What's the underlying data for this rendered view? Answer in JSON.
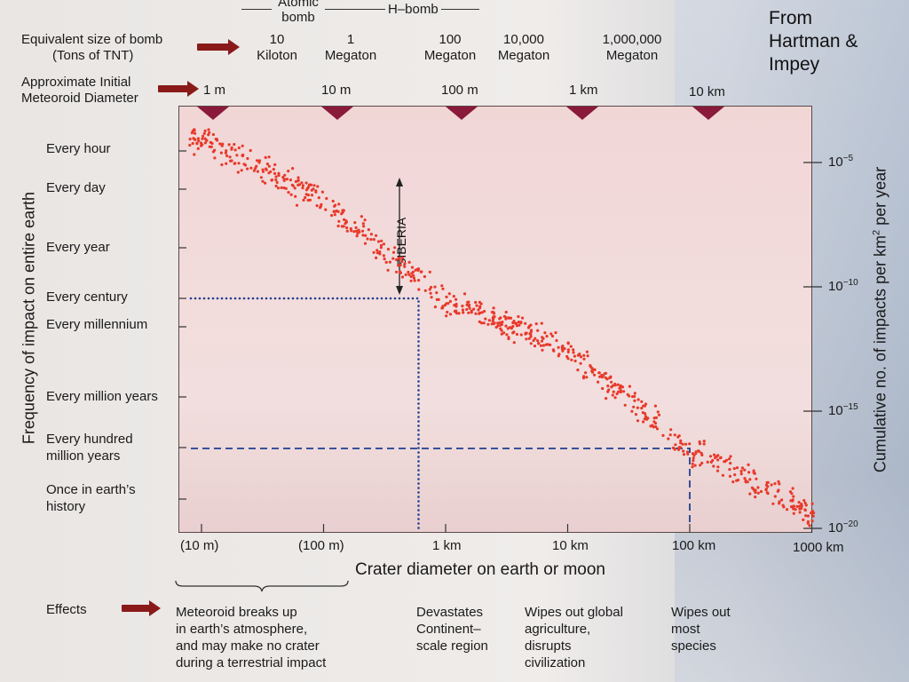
{
  "attribution": [
    "From",
    "Hartman &",
    "Impey"
  ],
  "bomb_header": {
    "atomic_label_1": "Atomic",
    "atomic_label_2": "bomb",
    "hbomb_label": "H–bomb",
    "row_label_1": "Equivalent size of bomb",
    "row_label_2": "(Tons of TNT)",
    "values": [
      {
        "line1": "10",
        "line2": "Kiloton"
      },
      {
        "line1": "1",
        "line2": "Megaton"
      },
      {
        "line1": "100",
        "line2": "Megaton"
      },
      {
        "line1": "10,000",
        "line2": "Megaton"
      },
      {
        "line1": "1,000,000",
        "line2": "Megaton"
      }
    ]
  },
  "meteoroid_header": {
    "row_label_1": "Approximate Initial",
    "row_label_2": "Meteoroid Diameter",
    "values": [
      "1 m",
      "10 m",
      "100 m",
      "1 km",
      "10 km"
    ]
  },
  "left_axis": {
    "label": "Frequency of impact on entire earth",
    "ticks": [
      {
        "lines": [
          "Every hour"
        ]
      },
      {
        "lines": [
          "Every day"
        ]
      },
      {
        "lines": [
          "Every year"
        ]
      },
      {
        "lines": [
          "Every century"
        ]
      },
      {
        "lines": [
          "Every millennium"
        ]
      },
      {
        "lines": [
          "Every million years"
        ]
      },
      {
        "lines": [
          "Every hundred",
          "million years"
        ]
      },
      {
        "lines": [
          "Once in earth’s",
          "history"
        ]
      }
    ]
  },
  "right_axis": {
    "label_prefix": "Cumulative no. of impacts per km",
    "label_sup": "2",
    "label_suffix": " per year",
    "ticks": [
      {
        "base": "10",
        "exp": "−5"
      },
      {
        "base": "10",
        "exp": "−10"
      },
      {
        "base": "10",
        "exp": "−15"
      },
      {
        "base": "10",
        "exp": "−20"
      }
    ]
  },
  "x_axis": {
    "label": "Crater diameter on earth or moon",
    "ticks": [
      "(10 m)",
      "(100 m)",
      "1 km",
      "10 km",
      "100 km",
      "1000 km"
    ]
  },
  "annotation": {
    "siberia": "SIBERIA"
  },
  "effects": {
    "label": "Effects",
    "items": [
      {
        "lines": [
          "Meteoroid breaks up",
          "in earth’s atmosphere,",
          "and may make no crater",
          "during a terrestrial impact"
        ]
      },
      {
        "lines": [
          "Devastates",
          "Continent–",
          "scale region"
        ]
      },
      {
        "lines": [
          "Wipes out global",
          "agriculture,",
          "disrupts",
          "civilization"
        ]
      },
      {
        "lines": [
          "Wipes out",
          "most",
          "species"
        ]
      }
    ]
  },
  "colors": {
    "points": "#e8392a",
    "marker": "#8a1a3a",
    "reference_lines": "#1f3f8f",
    "plot_background": "#f2d9d9"
  },
  "chart_data": {
    "type": "scatter",
    "title": "",
    "xlabel": "Crater diameter on earth or moon",
    "ylabel": "Frequency of impact on entire earth",
    "y2label": "Cumulative no. of impacts per km² per year",
    "x_scale": "log",
    "y_scale": "log",
    "xlim_km": [
      0.007,
      1400
    ],
    "y2lim": [
      0.001,
      1e-20
    ],
    "trend": [
      {
        "crater_km": 0.01,
        "impacts_per_km2_per_yr": 0.0001
      },
      {
        "crater_km": 0.1,
        "impacts_per_km2_per_yr": 3e-07
      },
      {
        "crater_km": 1,
        "impacts_per_km2_per_yr": 3e-11
      },
      {
        "crater_km": 10,
        "impacts_per_km2_per_yr": 3e-13
      },
      {
        "crater_km": 100,
        "impacts_per_km2_per_yr": 3e-17
      },
      {
        "crater_km": 1000,
        "impacts_per_km2_per_yr": 1e-19
      }
    ],
    "reference_lines": [
      {
        "style": "dotted",
        "crater_km": 0.6,
        "frequency": "Every century",
        "label": "SIBERIA"
      },
      {
        "style": "dashed",
        "crater_km": 100,
        "frequency": "Every hundred million years"
      }
    ],
    "grid": false,
    "legend": "none"
  }
}
